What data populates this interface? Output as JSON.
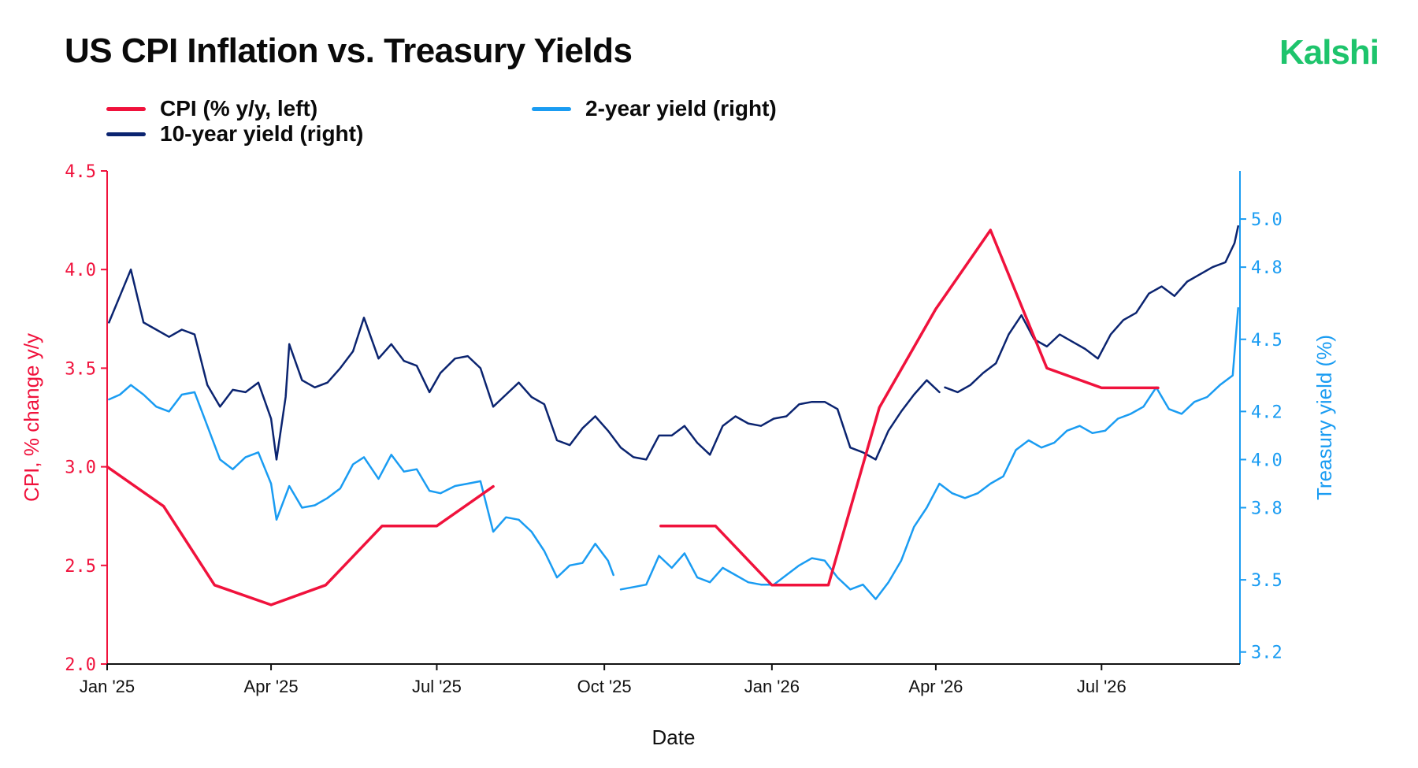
{
  "header": {
    "title": "US CPI Inflation vs. Treasury Yields",
    "brand": "Kalshi"
  },
  "colors": {
    "brand": "#1ec46c",
    "cpi": "#f0123c",
    "ten_year": "#0b2470",
    "two_year": "#1a9cf2"
  },
  "chart_data": {
    "type": "line",
    "title": "US CPI Inflation vs. Treasury Yields",
    "xlabel": "Date",
    "ylabel": "CPI, % change y/y",
    "y2label": "Treasury yield (%)",
    "ylim": [
      2.0,
      4.5
    ],
    "y2lim": [
      3.15,
      5.2
    ],
    "xlim": [
      "2025-01-01",
      "2026-09-15"
    ],
    "x_ticks": [
      {
        "date": "2025-01-01",
        "label": "Jan '25"
      },
      {
        "date": "2025-04-01",
        "label": "Apr '25"
      },
      {
        "date": "2025-07-01",
        "label": "Jul '25"
      },
      {
        "date": "2025-10-01",
        "label": "Oct '25"
      },
      {
        "date": "2026-01-01",
        "label": "Jan '26"
      },
      {
        "date": "2026-04-01",
        "label": "Apr '26"
      },
      {
        "date": "2026-07-01",
        "label": "Jul '26"
      }
    ],
    "y_ticks": [
      "2.0",
      "2.5",
      "3.0",
      "3.5",
      "4.0",
      "4.5"
    ],
    "y2_ticks": [
      "3.2",
      "3.5",
      "3.8",
      "4.0",
      "4.2",
      "4.5",
      "4.8",
      "5.0"
    ],
    "grid": false,
    "legend_position": "top-left",
    "series": [
      {
        "name": "CPI (% y/y, left)",
        "axis": "left",
        "segments": [
          [
            [
              "2025-01-01",
              3.0
            ],
            [
              "2025-02-01",
              2.8
            ],
            [
              "2025-03-01",
              2.4
            ],
            [
              "2025-04-01",
              2.3
            ],
            [
              "2025-05-01",
              2.4
            ],
            [
              "2025-06-01",
              2.7
            ],
            [
              "2025-07-01",
              2.7
            ],
            [
              "2025-08-01",
              2.9
            ]
          ],
          [
            [
              "2025-11-01",
              2.7
            ],
            [
              "2025-12-01",
              2.7
            ],
            [
              "2026-01-01",
              2.4
            ],
            [
              "2026-02-01",
              2.4
            ],
            [
              "2026-03-01",
              3.3
            ],
            [
              "2026-04-01",
              3.8
            ],
            [
              "2026-05-01",
              4.2
            ],
            [
              "2026-06-01",
              3.5
            ],
            [
              "2026-07-01",
              3.4
            ],
            [
              "2026-08-01",
              3.4
            ]
          ]
        ]
      },
      {
        "name": "10-year yield (right)",
        "axis": "right",
        "segments": [
          [
            [
              "2025-01-02",
              4.57
            ],
            [
              "2025-01-08",
              4.68
            ],
            [
              "2025-01-14",
              4.79
            ],
            [
              "2025-01-21",
              4.57
            ],
            [
              "2025-01-28",
              4.54
            ],
            [
              "2025-02-04",
              4.51
            ],
            [
              "2025-02-11",
              4.54
            ],
            [
              "2025-02-18",
              4.52
            ],
            [
              "2025-02-25",
              4.31
            ],
            [
              "2025-03-04",
              4.22
            ],
            [
              "2025-03-11",
              4.29
            ],
            [
              "2025-03-18",
              4.28
            ],
            [
              "2025-03-25",
              4.32
            ],
            [
              "2025-04-01",
              4.17
            ],
            [
              "2025-04-04",
              4.0
            ],
            [
              "2025-04-09",
              4.26
            ],
            [
              "2025-04-11",
              4.48
            ],
            [
              "2025-04-18",
              4.33
            ],
            [
              "2025-04-25",
              4.3
            ],
            [
              "2025-05-02",
              4.32
            ],
            [
              "2025-05-09",
              4.38
            ],
            [
              "2025-05-16",
              4.45
            ],
            [
              "2025-05-22",
              4.59
            ],
            [
              "2025-05-30",
              4.42
            ],
            [
              "2025-06-06",
              4.48
            ],
            [
              "2025-06-13",
              4.41
            ],
            [
              "2025-06-20",
              4.39
            ],
            [
              "2025-06-27",
              4.28
            ],
            [
              "2025-07-03",
              4.36
            ],
            [
              "2025-07-11",
              4.42
            ],
            [
              "2025-07-18",
              4.43
            ],
            [
              "2025-07-25",
              4.38
            ],
            [
              "2025-08-01",
              4.22
            ],
            [
              "2025-08-08",
              4.27
            ],
            [
              "2025-08-15",
              4.32
            ],
            [
              "2025-08-22",
              4.26
            ],
            [
              "2025-08-29",
              4.23
            ],
            [
              "2025-09-05",
              4.08
            ],
            [
              "2025-09-12",
              4.06
            ],
            [
              "2025-09-19",
              4.13
            ],
            [
              "2025-09-26",
              4.18
            ],
            [
              "2025-10-03",
              4.12
            ],
            [
              "2025-10-10",
              4.05
            ],
            [
              "2025-10-17",
              4.01
            ],
            [
              "2025-10-24",
              4.0
            ],
            [
              "2025-10-31",
              4.1
            ],
            [
              "2025-11-07",
              4.1
            ],
            [
              "2025-11-14",
              4.14
            ],
            [
              "2025-11-21",
              4.07
            ],
            [
              "2025-11-28",
              4.02
            ],
            [
              "2025-12-05",
              4.14
            ],
            [
              "2025-12-12",
              4.18
            ],
            [
              "2025-12-19",
              4.15
            ],
            [
              "2025-12-26",
              4.14
            ],
            [
              "2026-01-02",
              4.17
            ],
            [
              "2026-01-09",
              4.18
            ],
            [
              "2026-01-16",
              4.23
            ],
            [
              "2026-01-23",
              4.24
            ],
            [
              "2026-01-30",
              4.24
            ],
            [
              "2026-02-06",
              4.21
            ],
            [
              "2026-02-13",
              4.05
            ],
            [
              "2026-02-20",
              4.03
            ],
            [
              "2026-02-27",
              4.0
            ],
            [
              "2026-03-06",
              4.12
            ],
            [
              "2026-03-13",
              4.2
            ],
            [
              "2026-03-20",
              4.27
            ],
            [
              "2026-03-27",
              4.33
            ],
            [
              "2026-04-03",
              4.28
            ]
          ],
          [
            [
              "2026-04-06",
              4.3
            ],
            [
              "2026-04-13",
              4.28
            ],
            [
              "2026-04-20",
              4.31
            ],
            [
              "2026-04-27",
              4.36
            ],
            [
              "2026-05-04",
              4.4
            ],
            [
              "2026-05-11",
              4.52
            ],
            [
              "2026-05-18",
              4.6
            ],
            [
              "2026-05-25",
              4.5
            ],
            [
              "2026-06-01",
              4.47
            ],
            [
              "2026-06-08",
              4.52
            ],
            [
              "2026-06-15",
              4.49
            ],
            [
              "2026-06-22",
              4.46
            ],
            [
              "2026-06-29",
              4.42
            ],
            [
              "2026-07-06",
              4.52
            ],
            [
              "2026-07-13",
              4.58
            ],
            [
              "2026-07-20",
              4.61
            ],
            [
              "2026-07-27",
              4.69
            ],
            [
              "2026-08-03",
              4.72
            ],
            [
              "2026-08-10",
              4.68
            ],
            [
              "2026-08-17",
              4.74
            ],
            [
              "2026-08-24",
              4.77
            ],
            [
              "2026-08-31",
              4.8
            ],
            [
              "2026-09-07",
              4.82
            ],
            [
              "2026-09-12",
              4.9
            ],
            [
              "2026-09-14",
              4.97
            ]
          ]
        ]
      },
      {
        "name": "2-year yield (right)",
        "axis": "right",
        "segments": [
          [
            [
              "2025-01-02",
              4.25
            ],
            [
              "2025-01-08",
              4.27
            ],
            [
              "2025-01-14",
              4.31
            ],
            [
              "2025-01-21",
              4.27
            ],
            [
              "2025-01-28",
              4.22
            ],
            [
              "2025-02-04",
              4.2
            ],
            [
              "2025-02-11",
              4.27
            ],
            [
              "2025-02-18",
              4.28
            ],
            [
              "2025-02-25",
              4.14
            ],
            [
              "2025-03-04",
              4.0
            ],
            [
              "2025-03-11",
              3.96
            ],
            [
              "2025-03-18",
              4.01
            ],
            [
              "2025-03-25",
              4.03
            ],
            [
              "2025-04-01",
              3.9
            ],
            [
              "2025-04-04",
              3.75
            ],
            [
              "2025-04-11",
              3.89
            ],
            [
              "2025-04-18",
              3.8
            ],
            [
              "2025-04-25",
              3.81
            ],
            [
              "2025-05-02",
              3.84
            ],
            [
              "2025-05-09",
              3.88
            ],
            [
              "2025-05-16",
              3.98
            ],
            [
              "2025-05-22",
              4.01
            ],
            [
              "2025-05-30",
              3.92
            ],
            [
              "2025-06-06",
              4.02
            ],
            [
              "2025-06-13",
              3.95
            ],
            [
              "2025-06-20",
              3.96
            ],
            [
              "2025-06-27",
              3.87
            ],
            [
              "2025-07-03",
              3.86
            ],
            [
              "2025-07-11",
              3.89
            ],
            [
              "2025-07-18",
              3.9
            ],
            [
              "2025-07-25",
              3.91
            ],
            [
              "2025-08-01",
              3.7
            ],
            [
              "2025-08-08",
              3.76
            ],
            [
              "2025-08-15",
              3.75
            ],
            [
              "2025-08-22",
              3.7
            ],
            [
              "2025-08-29",
              3.62
            ],
            [
              "2025-09-05",
              3.51
            ],
            [
              "2025-09-12",
              3.56
            ],
            [
              "2025-09-19",
              3.57
            ],
            [
              "2025-09-26",
              3.65
            ],
            [
              "2025-10-03",
              3.58
            ],
            [
              "2025-10-06",
              3.52
            ]
          ],
          [
            [
              "2025-10-10",
              3.46
            ],
            [
              "2025-10-17",
              3.47
            ],
            [
              "2025-10-24",
              3.48
            ],
            [
              "2025-10-31",
              3.6
            ],
            [
              "2025-11-07",
              3.55
            ],
            [
              "2025-11-14",
              3.61
            ],
            [
              "2025-11-21",
              3.51
            ],
            [
              "2025-11-28",
              3.49
            ],
            [
              "2025-12-05",
              3.55
            ],
            [
              "2025-12-12",
              3.52
            ],
            [
              "2025-12-19",
              3.49
            ],
            [
              "2025-12-26",
              3.48
            ],
            [
              "2026-01-02",
              3.48
            ],
            [
              "2026-01-09",
              3.52
            ],
            [
              "2026-01-16",
              3.56
            ],
            [
              "2026-01-23",
              3.59
            ],
            [
              "2026-01-30",
              3.58
            ],
            [
              "2026-02-06",
              3.51
            ],
            [
              "2026-02-13",
              3.46
            ],
            [
              "2026-02-20",
              3.48
            ],
            [
              "2026-02-27",
              3.42
            ],
            [
              "2026-03-06",
              3.49
            ],
            [
              "2026-03-13",
              3.58
            ],
            [
              "2026-03-20",
              3.72
            ],
            [
              "2026-03-27",
              3.8
            ],
            [
              "2026-04-03",
              3.9
            ],
            [
              "2026-04-10",
              3.86
            ],
            [
              "2026-04-17",
              3.84
            ],
            [
              "2026-04-24",
              3.86
            ],
            [
              "2026-05-01",
              3.9
            ],
            [
              "2026-05-08",
              3.93
            ],
            [
              "2026-05-15",
              4.04
            ],
            [
              "2026-05-22",
              4.08
            ],
            [
              "2026-05-29",
              4.05
            ],
            [
              "2026-06-05",
              4.07
            ],
            [
              "2026-06-12",
              4.12
            ],
            [
              "2026-06-19",
              4.14
            ],
            [
              "2026-06-26",
              4.11
            ],
            [
              "2026-07-03",
              4.12
            ],
            [
              "2026-07-10",
              4.17
            ],
            [
              "2026-07-17",
              4.19
            ],
            [
              "2026-07-24",
              4.22
            ],
            [
              "2026-07-31",
              4.3
            ],
            [
              "2026-08-07",
              4.21
            ],
            [
              "2026-08-14",
              4.19
            ],
            [
              "2026-08-21",
              4.24
            ],
            [
              "2026-08-28",
              4.26
            ],
            [
              "2026-09-04",
              4.31
            ],
            [
              "2026-09-11",
              4.35
            ],
            [
              "2026-09-14",
              4.63
            ]
          ]
        ]
      }
    ]
  }
}
